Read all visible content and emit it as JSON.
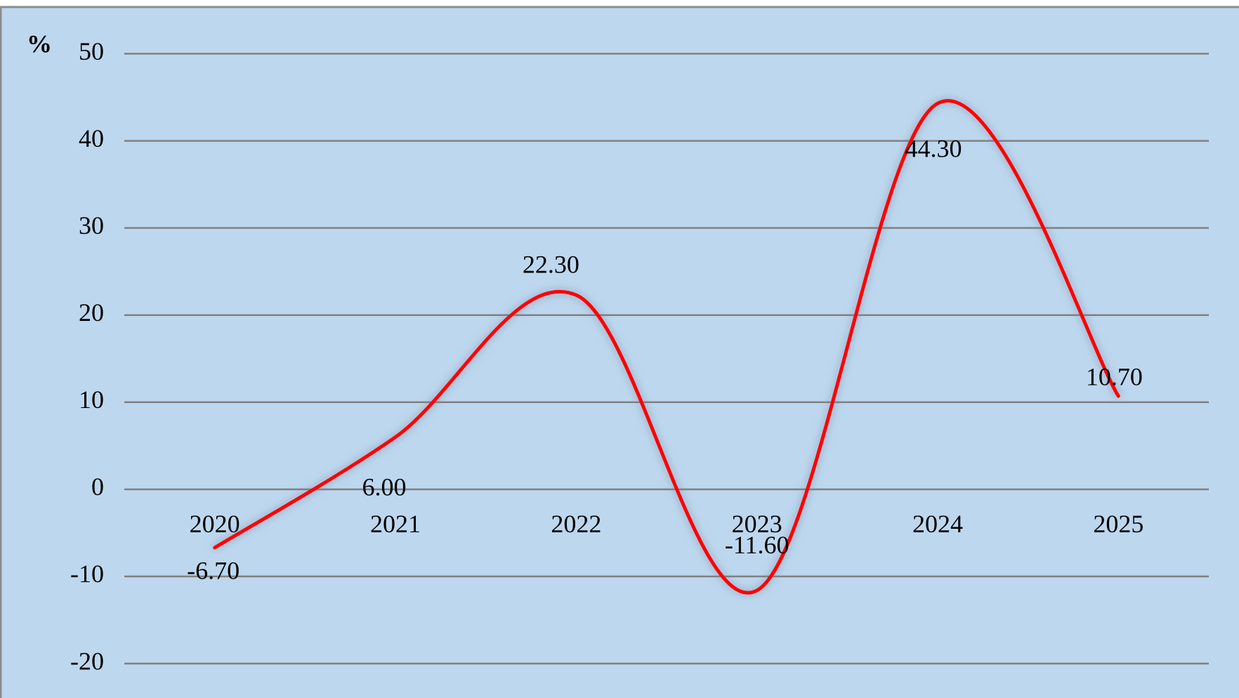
{
  "chart_data": {
    "type": "line",
    "y_label": "%",
    "categories": [
      "2020",
      "2021",
      "2022",
      "2023",
      "2024",
      "2025"
    ],
    "values": [
      -6.7,
      6.0,
      22.3,
      -11.6,
      44.3,
      10.7
    ],
    "value_labels": [
      "-6.70",
      "6.00",
      "22.30",
      "-11.60",
      "44.30",
      "10.70"
    ],
    "color": "#ff0000",
    "ylim": [
      -20,
      50
    ],
    "yticks": [
      -20,
      -10,
      0,
      10,
      20,
      30,
      40,
      50
    ],
    "grid": true,
    "smooth": true
  }
}
